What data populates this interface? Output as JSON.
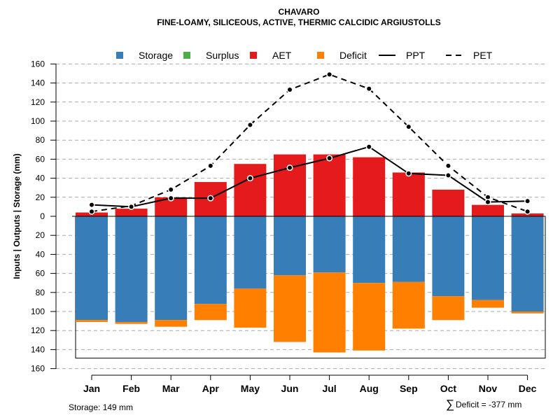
{
  "chart_data": {
    "type": "bar",
    "title": "CHAVARO",
    "subtitle": "FINE-LOAMY, SILICEOUS, ACTIVE, THERMIC CALCIDIC ARGIUSTOLLS",
    "ylabel": "Inputs | Outputs | Storage    (mm)",
    "ylim": [
      -160,
      160
    ],
    "y_ticks": [
      160,
      140,
      120,
      100,
      80,
      60,
      40,
      20,
      0,
      -20,
      -40,
      -60,
      -80,
      -100,
      -120,
      -140,
      -160
    ],
    "y_tick_labels": [
      "160",
      "140",
      "120",
      "100",
      "80",
      "60",
      "40",
      "20",
      "0",
      "20",
      "40",
      "60",
      "80",
      "100",
      "120",
      "140",
      "160"
    ],
    "categories": [
      "Jan",
      "Feb",
      "Mar",
      "Apr",
      "May",
      "Jun",
      "Jul",
      "Aug",
      "Sep",
      "Oct",
      "Nov",
      "Dec"
    ],
    "legend": [
      {
        "label": "Storage",
        "kind": "box",
        "color": "#377eb8"
      },
      {
        "label": "Surplus",
        "kind": "box",
        "color": "#4daf4a"
      },
      {
        "label": "AET",
        "kind": "box",
        "color": "#e41a1c"
      },
      {
        "label": "Deficit",
        "kind": "box",
        "color": "#ff7f00"
      },
      {
        "label": "PPT",
        "kind": "solid",
        "color": "#000000"
      },
      {
        "label": "PET",
        "kind": "dashed",
        "color": "#000000"
      }
    ],
    "series": [
      {
        "name": "AET",
        "values": [
          4,
          8,
          20,
          36,
          55,
          65,
          65,
          62,
          46,
          28,
          12,
          3
        ]
      },
      {
        "name": "Surplus",
        "values": [
          0,
          0,
          0,
          0,
          0,
          0,
          0,
          0,
          0,
          0,
          0,
          0
        ]
      },
      {
        "name": "Storage",
        "values": [
          109,
          111,
          109,
          92,
          76,
          62,
          59,
          70,
          69,
          84,
          88,
          100
        ]
      },
      {
        "name": "Deficit",
        "values": [
          2,
          2,
          7,
          17,
          41,
          70,
          84,
          71,
          49,
          25,
          8,
          2
        ]
      },
      {
        "name": "PPT",
        "values": [
          12,
          10,
          19,
          19,
          40,
          51,
          61,
          73,
          45,
          43,
          15,
          16
        ]
      },
      {
        "name": "PET",
        "values": [
          5,
          11,
          28,
          53,
          96,
          133,
          149,
          134,
          94,
          53,
          20,
          5
        ]
      }
    ],
    "storage_capacity": 149,
    "footnote_left": "Storage: 149 mm",
    "footnote_right_symbol": "∑",
    "footnote_right": "Deficit = -377 mm",
    "colors": {
      "storage": "#377eb8",
      "surplus": "#4daf4a",
      "aet": "#e41a1c",
      "deficit": "#ff7f00",
      "line": "#000000",
      "grid": "#a9a9a9"
    }
  }
}
